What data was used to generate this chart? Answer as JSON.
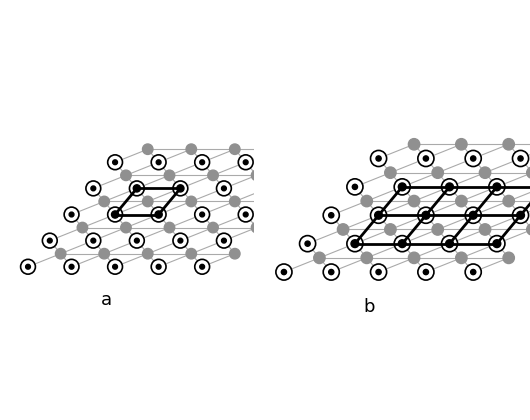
{
  "title_a": "a",
  "title_b": "b",
  "bg_color": "#ffffff",
  "open_circle_facecolor": "#ffffff",
  "open_circle_edgecolor": "#000000",
  "open_circle_lw": 1.2,
  "open_circle_r": 0.17,
  "gray_circle_color": "#909090",
  "gray_circle_r": 0.12,
  "dot_color": "#000000",
  "dot_r": 0.055,
  "conn_line_color": "#aaaaaa",
  "conn_line_lw": 0.8,
  "para_line_color": "#000000",
  "para_line_lw": 2.0,
  "label_fontsize": 13
}
